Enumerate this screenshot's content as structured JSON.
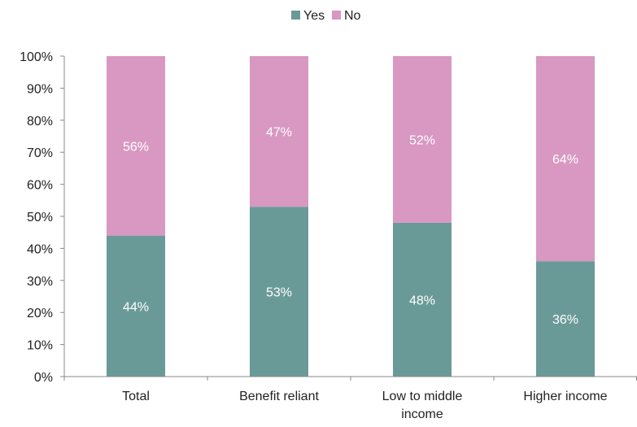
{
  "chart_data": {
    "type": "bar",
    "stacked": true,
    "categories": [
      [
        "Total"
      ],
      [
        "Benefit reliant"
      ],
      [
        "Low to middle",
        "income"
      ],
      [
        "Higher income"
      ]
    ],
    "series": [
      {
        "name": "Yes",
        "values": [
          44,
          53,
          48,
          36
        ],
        "labels": [
          "44%",
          "53%",
          "48%",
          "36%"
        ],
        "color": "#6a9a97"
      },
      {
        "name": "No",
        "values": [
          56,
          47,
          52,
          64
        ],
        "labels": [
          "56%",
          "47%",
          "52%",
          "64%"
        ],
        "color": "#d898c2"
      }
    ],
    "ylim": [
      0,
      100
    ],
    "yticks": [
      "0%",
      "10%",
      "20%",
      "30%",
      "40%",
      "50%",
      "60%",
      "70%",
      "80%",
      "90%",
      "100%"
    ],
    "legend_position": "top-center",
    "grid": false,
    "axis_color": "#888888"
  }
}
